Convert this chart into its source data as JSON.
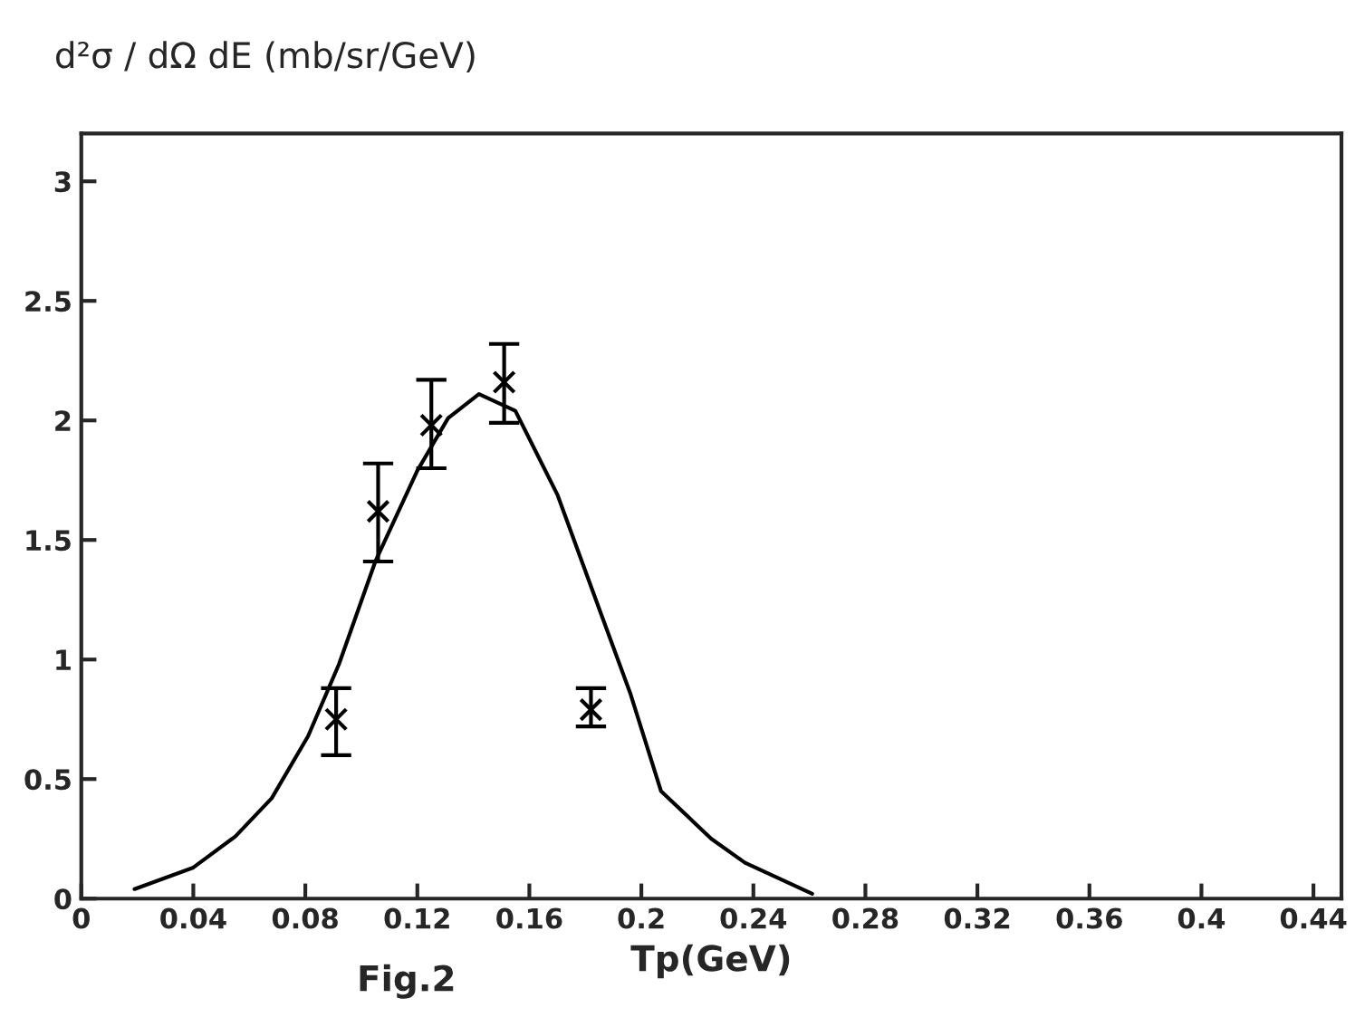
{
  "chart_data": {
    "type": "scatter",
    "ylabel": "d²σ / dΩ dE (mb/sr/GeV)",
    "xlabel": "Tp(GeV)",
    "annotations": [
      "Fig.2"
    ],
    "xlim": [
      0,
      0.45
    ],
    "ylim": [
      0,
      3.2
    ],
    "xticks": [
      0,
      0.04,
      0.08,
      0.12,
      0.16,
      0.2,
      0.24,
      0.28,
      0.32,
      0.36,
      0.4,
      0.44
    ],
    "yticks": [
      0,
      0.5,
      1,
      1.5,
      2,
      2.5,
      3
    ],
    "grid": false,
    "legend": false,
    "series": [
      {
        "color": "#000000",
        "marker": "cross",
        "x": [
          0.091,
          0.106,
          0.125,
          0.151,
          0.182
        ],
        "values": [
          0.75,
          1.62,
          1.98,
          2.16,
          0.79
        ],
        "errors": [
          [
            0.6,
            0.88
          ],
          [
            1.41,
            1.82
          ],
          [
            1.8,
            2.17
          ],
          [
            1.99,
            2.32
          ],
          [
            0.72,
            0.88
          ]
        ]
      },
      {
        "type": "line",
        "color": "#000000",
        "marker": "none",
        "line_style": "solid",
        "x": [
          0.019,
          0.04,
          0.055,
          0.068,
          0.081,
          0.092,
          0.105,
          0.12,
          0.131,
          0.142,
          0.155,
          0.17,
          0.185,
          0.196,
          0.207,
          0.225,
          0.237,
          0.261
        ],
        "values": [
          0.04,
          0.13,
          0.26,
          0.42,
          0.68,
          0.98,
          1.41,
          1.79,
          2.01,
          2.11,
          2.04,
          1.69,
          1.21,
          0.86,
          0.45,
          0.25,
          0.15,
          0.02
        ]
      }
    ]
  }
}
